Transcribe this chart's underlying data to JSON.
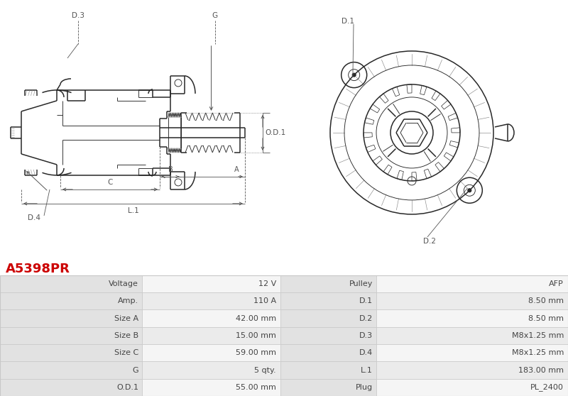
{
  "title": "A5398PR",
  "title_color": "#cc0000",
  "bg_color": "#ffffff",
  "table_rows": [
    [
      "Voltage",
      "12 V",
      "Pulley",
      "AFP"
    ],
    [
      "Amp.",
      "110 A",
      "D.1",
      "8.50 mm"
    ],
    [
      "Size A",
      "42.00 mm",
      "D.2",
      "8.50 mm"
    ],
    [
      "Size B",
      "15.00 mm",
      "D.3",
      "M8x1.25 mm"
    ],
    [
      "Size C",
      "59.00 mm",
      "D.4",
      "M8x1.25 mm"
    ],
    [
      "G",
      "5 qty.",
      "L.1",
      "183.00 mm"
    ],
    [
      "O.D.1",
      "55.00 mm",
      "Plug",
      "PL_2400"
    ]
  ],
  "header_bg": "#e2e2e2",
  "row_bg1": "#f5f5f5",
  "row_bg2": "#ebebeb",
  "border_color": "#c8c8c8",
  "text_color": "#444444",
  "font_size": 8.0
}
